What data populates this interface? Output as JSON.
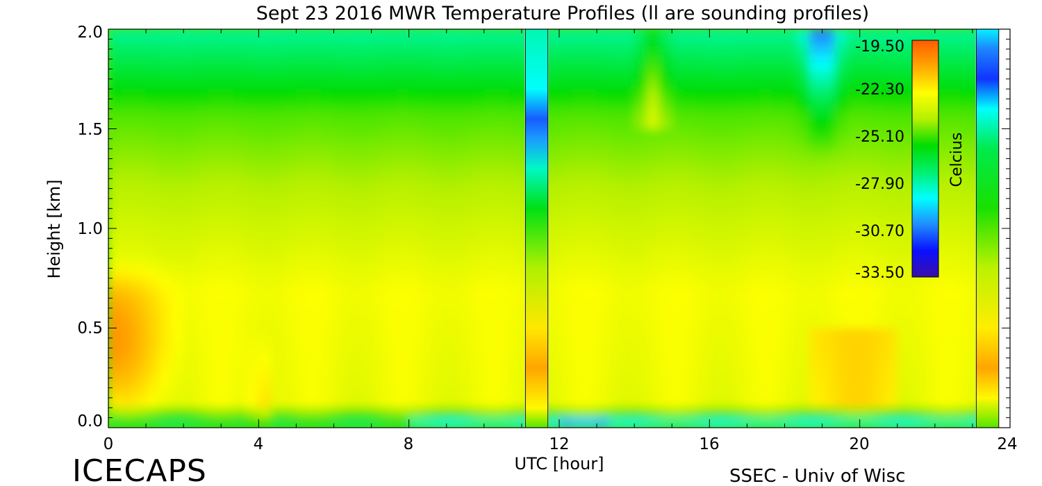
{
  "chart_data": {
    "type": "heatmap",
    "title": "Sept 23 2016 MWR Temperature Profiles (ll are sounding profiles)",
    "xlabel": "UTC [hour]",
    "ylabel": "Height [km]",
    "xlim": [
      0,
      24
    ],
    "ylim": [
      0.0,
      2.0
    ],
    "x_ticks": [
      "0",
      "4",
      "8",
      "12",
      "16",
      "20",
      "24"
    ],
    "y_ticks": [
      "0.0",
      "0.5",
      "1.0",
      "1.5",
      "2.0"
    ],
    "colorbar": {
      "label": "Celcius",
      "range": [
        -33.5,
        -19.5
      ],
      "ticks": [
        "-19.50",
        "-22.30",
        "-25.10",
        "-27.90",
        "-30.70",
        "-33.50"
      ]
    },
    "sounding_profiles": [
      {
        "time_range": [
          11.1,
          11.7
        ],
        "profile": [
          {
            "height_km": 0.0,
            "temp_c": -25.0
          },
          {
            "height_km": 0.1,
            "temp_c": -22.5
          },
          {
            "height_km": 0.3,
            "temp_c": -21.0
          },
          {
            "height_km": 0.5,
            "temp_c": -22.2
          },
          {
            "height_km": 0.8,
            "temp_c": -24.2
          },
          {
            "height_km": 1.1,
            "temp_c": -26.0
          },
          {
            "height_km": 1.3,
            "temp_c": -28.2
          },
          {
            "height_km": 1.45,
            "temp_c": -30.2
          },
          {
            "height_km": 1.55,
            "temp_c": -31.0
          },
          {
            "height_km": 1.7,
            "temp_c": -28.8
          },
          {
            "height_km": 2.0,
            "temp_c": -28.0
          }
        ]
      },
      {
        "time_range": [
          23.1,
          23.7
        ],
        "profile": [
          {
            "height_km": 0.0,
            "temp_c": -25.0
          },
          {
            "height_km": 0.15,
            "temp_c": -22.5
          },
          {
            "height_km": 0.3,
            "temp_c": -21.0
          },
          {
            "height_km": 0.5,
            "temp_c": -22.3
          },
          {
            "height_km": 0.8,
            "temp_c": -24.0
          },
          {
            "height_km": 1.1,
            "temp_c": -25.5
          },
          {
            "height_km": 1.4,
            "temp_c": -26.8
          },
          {
            "height_km": 1.6,
            "temp_c": -28.8
          },
          {
            "height_km": 1.75,
            "temp_c": -31.5
          },
          {
            "height_km": 1.9,
            "temp_c": -30.5
          },
          {
            "height_km": 2.0,
            "temp_c": -29.0
          }
        ]
      }
    ],
    "colors": {
      "colormap": [
        "#3a0ea8",
        "#0a10ff",
        "#1f8dff",
        "#00ffff",
        "#00f06e",
        "#00dd00",
        "#b4f000",
        "#ffff00",
        "#ffa800",
        "#ff5a00"
      ]
    }
  },
  "footer": {
    "left": "ICECAPS",
    "right": "SSEC - Univ of Wisc"
  }
}
